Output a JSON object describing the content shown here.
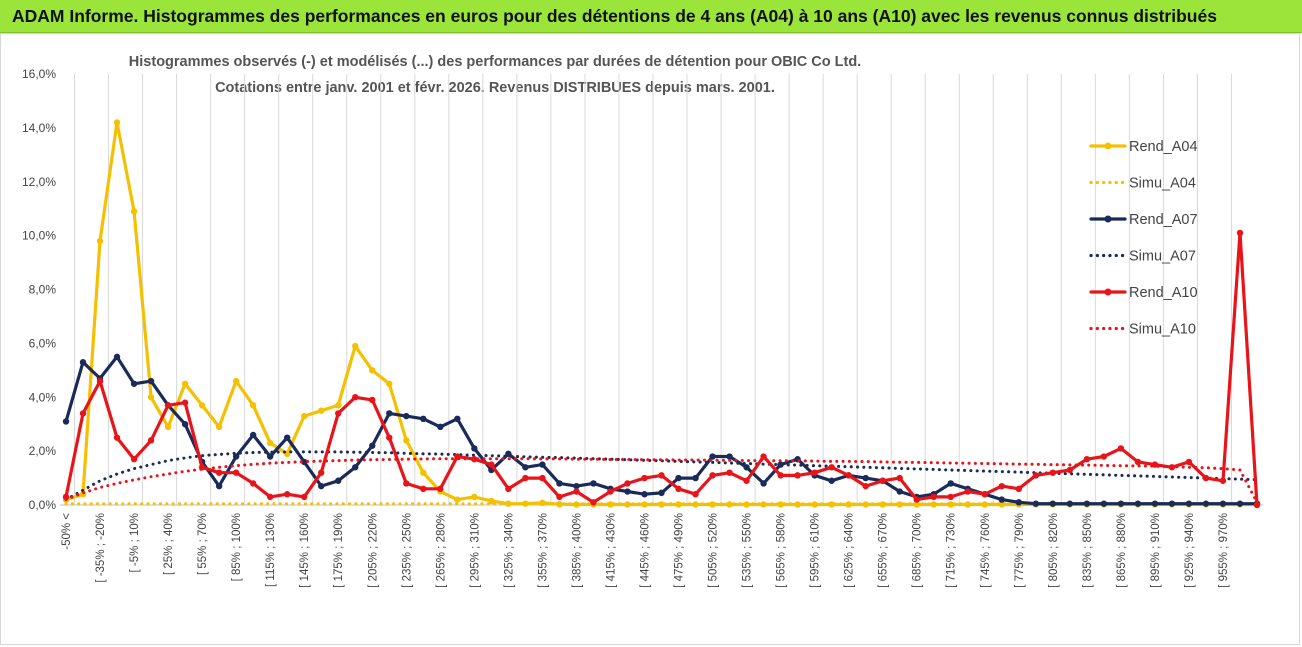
{
  "banner": {
    "title": "ADAM Informe. Histogrammes des performances en euros pour des détentions de 4 ans (A04) à 10 ans (A10) avec les revenus connus distribués"
  },
  "chart_data": {
    "type": "line",
    "title_line1": "Histogrammes observés (-)  et modélisés (...) des performances par durées de détention pour OBIC Co Ltd.",
    "title_line2": "Cotations entre janv. 2001 et févr. 2026. Revenus DISTRIBUES depuis mars. 2001.",
    "ylim": [
      0,
      16
    ],
    "y_ticks": [
      "0,0%",
      "2,0%",
      "4,0%",
      "6,0%",
      "8,0%",
      "10,0%",
      "12,0%",
      "14,0%",
      "16,0%"
    ],
    "x_tick_labels": [
      "-50% <",
      "[ -35% ; -20%",
      "[ -5% ; 10%",
      "[ 25% ; 40%",
      "[ 55% ; 70%",
      "[ 85% ; 100%",
      "[ 115% ; 130%",
      "[ 145% ; 160%",
      "[ 175% ; 190%",
      "[ 205% ; 220%",
      "[ 235% ; 250%",
      "[ 265% ; 280%",
      "[ 295% ; 310%",
      "[ 325% ; 340%",
      "[ 355% ; 370%",
      "[ 385% ; 400%",
      "[ 415% ; 430%",
      "[ 445% ; 460%",
      "[ 475% ; 490%",
      "[ 505% ; 520%",
      "[ 535% ; 550%",
      "[ 565% ; 580%",
      "[ 595% ; 610%",
      "[ 625% ; 640%",
      "[ 655% ; 670%",
      "[ 685% ; 700%",
      "[ 715% ; 730%",
      "[ 745% ; 760%",
      "[ 775% ; 790%",
      "[ 805% ; 820%",
      "[ 835% ; 850%",
      "[ 865% ; 880%",
      "[ 895% ; 910%",
      "[ 925% ; 940%",
      "[ 955% ; 970%"
    ],
    "n_points": 71,
    "series": [
      {
        "name": "Rend_A04",
        "style": "solid",
        "color": "#F5C000",
        "values": [
          0.2,
          0.4,
          9.8,
          14.2,
          10.9,
          4.0,
          2.9,
          4.5,
          3.7,
          2.9,
          4.6,
          3.7,
          2.3,
          1.9,
          3.3,
          3.5,
          3.7,
          5.9,
          5.0,
          4.5,
          2.4,
          1.2,
          0.5,
          0.2,
          0.3,
          0.15,
          0.05,
          0.05,
          0.08,
          0.03,
          0.02,
          0.02,
          0.02,
          0.02,
          0.02,
          0.02,
          0.02,
          0.02,
          0.02,
          0.02,
          0.02,
          0.02,
          0.02,
          0.02,
          0.02,
          0.02,
          0.02,
          0.02,
          0.02,
          0.02,
          0.02,
          0.02,
          0.02,
          0.02,
          0.02,
          0.02,
          0.02,
          0.02,
          0.02,
          0.02,
          0.02,
          0.02,
          0.02,
          0.02,
          0.02,
          0.02,
          0.02,
          0.02,
          0.02,
          0.02,
          0.02
        ]
      },
      {
        "name": "Simu_A04",
        "style": "dotted",
        "color": "#F5C000",
        "values": [
          0.05,
          0.05,
          0.05,
          0.05,
          0.05,
          0.05,
          0.05,
          0.05,
          0.05,
          0.05,
          0.05,
          0.05,
          0.05,
          0.05,
          0.05,
          0.05,
          0.05,
          0.05,
          0.05,
          0.05,
          0.05,
          0.05,
          0.05,
          0.05,
          0.05,
          0.05,
          0.05,
          0.05,
          0.05,
          0.05,
          0.05,
          0.05,
          0.05,
          0.05,
          0.05,
          0.05,
          0.05,
          0.05,
          0.05,
          0.05,
          0.05,
          0.05,
          0.05,
          0.05,
          0.05,
          0.05,
          0.05,
          0.05,
          0.05,
          0.05,
          0.05,
          0.05,
          0.05,
          0.05,
          0.05,
          0.05,
          0.05,
          0.05,
          0.05,
          0.05,
          0.05,
          0.05,
          0.05,
          0.05,
          0.05,
          0.05,
          0.05,
          0.05,
          0.05,
          0.05,
          0.05
        ]
      },
      {
        "name": "Rend_A07",
        "style": "solid",
        "color": "#1A2B5A",
        "values": [
          3.1,
          5.3,
          4.7,
          5.5,
          4.5,
          4.6,
          3.7,
          3.0,
          1.6,
          0.7,
          1.8,
          2.6,
          1.8,
          2.5,
          1.6,
          0.7,
          0.9,
          1.4,
          2.2,
          3.4,
          3.3,
          3.2,
          2.9,
          3.2,
          2.1,
          1.3,
          1.9,
          1.4,
          1.5,
          0.8,
          0.7,
          0.8,
          0.6,
          0.5,
          0.4,
          0.45,
          1.0,
          1.0,
          1.8,
          1.8,
          1.4,
          0.8,
          1.5,
          1.7,
          1.1,
          0.9,
          1.1,
          1.0,
          0.9,
          0.5,
          0.3,
          0.4,
          0.8,
          0.6,
          0.4,
          0.2,
          0.1,
          0.05,
          0.05,
          0.05,
          0.05,
          0.05,
          0.05,
          0.05,
          0.05,
          0.05,
          0.05,
          0.05,
          0.05,
          0.05,
          0.05
        ]
      },
      {
        "name": "Simu_A07",
        "style": "dotted",
        "color": "#1A2B5A",
        "values": [
          0.2,
          0.55,
          0.9,
          1.15,
          1.35,
          1.5,
          1.65,
          1.75,
          1.83,
          1.88,
          1.92,
          1.95,
          1.96,
          1.97,
          1.97,
          1.97,
          1.97,
          1.96,
          1.95,
          1.94,
          1.92,
          1.9,
          1.89,
          1.87,
          1.85,
          1.83,
          1.81,
          1.79,
          1.77,
          1.76,
          1.74,
          1.72,
          1.7,
          1.68,
          1.66,
          1.64,
          1.62,
          1.6,
          1.58,
          1.56,
          1.54,
          1.52,
          1.5,
          1.48,
          1.46,
          1.44,
          1.42,
          1.4,
          1.38,
          1.36,
          1.34,
          1.32,
          1.3,
          1.28,
          1.26,
          1.24,
          1.22,
          1.2,
          1.18,
          1.16,
          1.14,
          1.12,
          1.1,
          1.08,
          1.06,
          1.04,
          1.02,
          1.0,
          0.98,
          0.96,
          0.94
        ]
      },
      {
        "name": "Rend_A10",
        "style": "solid",
        "color": "#E8141A",
        "values": [
          0.3,
          3.4,
          4.6,
          2.5,
          1.7,
          2.4,
          3.7,
          3.8,
          1.4,
          1.2,
          1.2,
          0.8,
          0.3,
          0.4,
          0.3,
          1.2,
          3.4,
          4.0,
          3.9,
          2.5,
          0.8,
          0.6,
          0.6,
          1.8,
          1.7,
          1.5,
          0.6,
          1.0,
          1.0,
          0.3,
          0.5,
          0.1,
          0.5,
          0.8,
          1.0,
          1.1,
          0.6,
          0.4,
          1.1,
          1.2,
          0.9,
          1.8,
          1.1,
          1.1,
          1.2,
          1.4,
          1.1,
          0.7,
          0.9,
          1.0,
          0.2,
          0.3,
          0.3,
          0.5,
          0.4,
          0.7,
          0.6,
          1.1,
          1.2,
          1.3,
          1.7,
          1.8,
          2.1,
          1.6,
          1.5,
          1.4,
          1.6,
          1.0,
          0.9,
          10.1,
          0.0
        ]
      },
      {
        "name": "Simu_A10",
        "style": "dotted",
        "color": "#E8141A",
        "values": [
          0.2,
          0.45,
          0.65,
          0.8,
          0.93,
          1.05,
          1.15,
          1.25,
          1.33,
          1.4,
          1.46,
          1.51,
          1.55,
          1.58,
          1.61,
          1.63,
          1.65,
          1.67,
          1.68,
          1.69,
          1.7,
          1.71,
          1.72,
          1.72,
          1.72,
          1.72,
          1.72,
          1.72,
          1.71,
          1.71,
          1.7,
          1.7,
          1.69,
          1.69,
          1.68,
          1.68,
          1.67,
          1.67,
          1.66,
          1.66,
          1.65,
          1.65,
          1.64,
          1.64,
          1.63,
          1.62,
          1.62,
          1.61,
          1.6,
          1.59,
          1.58,
          1.57,
          1.56,
          1.55,
          1.54,
          1.53,
          1.52,
          1.51,
          1.5,
          1.49,
          1.48,
          1.47,
          1.46,
          1.45,
          1.44,
          1.42,
          1.4,
          1.38,
          1.35,
          1.3,
          0.1
        ]
      }
    ]
  }
}
